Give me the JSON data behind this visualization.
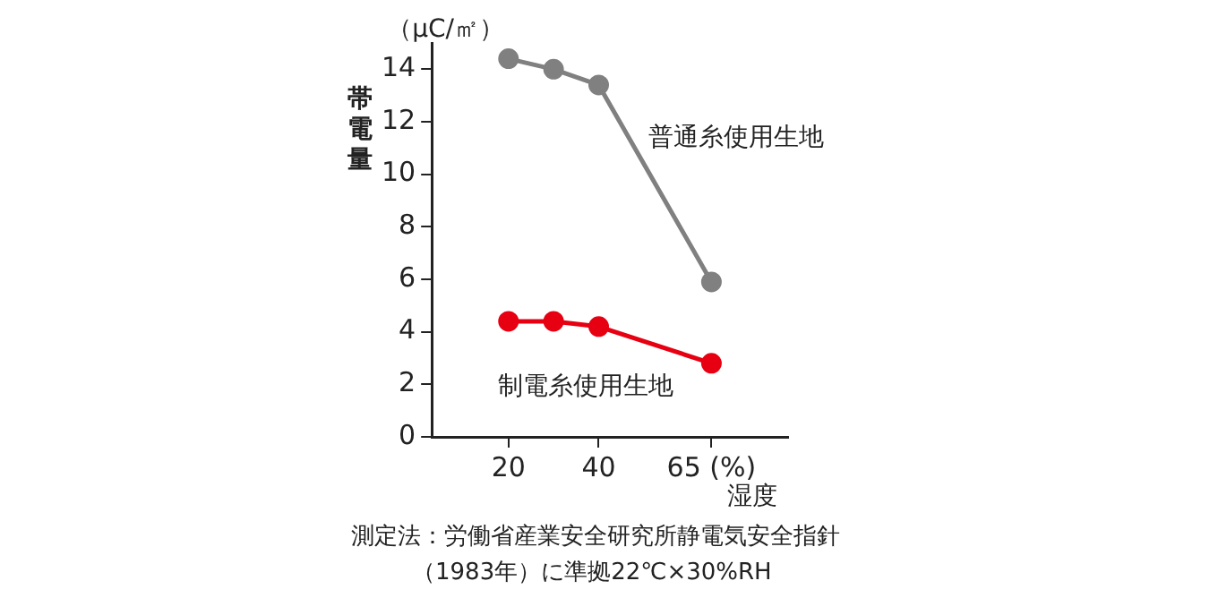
{
  "chart_data": {
    "type": "line",
    "ylabel": "帯電量",
    "xlabel": "湿度",
    "x": [
      20,
      30,
      40,
      65
    ],
    "series": [
      {
        "name": "普通糸使用生地",
        "color": "#808080",
        "values": [
          14.4,
          14.0,
          13.4,
          5.9
        ]
      },
      {
        "name": "制電糸使用生地",
        "color": "#e60012",
        "values": [
          4.4,
          4.4,
          4.2,
          2.8
        ]
      }
    ],
    "xlim": [
      3,
      82
    ],
    "xticks": [
      20,
      40,
      {
        "value": 65,
        "label": "65 (%)"
      }
    ],
    "ylim": [
      0,
      15
    ],
    "yticks": [
      0,
      2,
      4,
      6,
      8,
      10,
      12,
      14
    ],
    "grid": false,
    "legend": false,
    "marker": "circle",
    "line_style": "solid",
    "annotations": [
      "（μC/㎡）",
      "測定法：労働省産業安全研究所静電気安全指針",
      "（1983年）に準拠22℃×30%RH"
    ]
  }
}
